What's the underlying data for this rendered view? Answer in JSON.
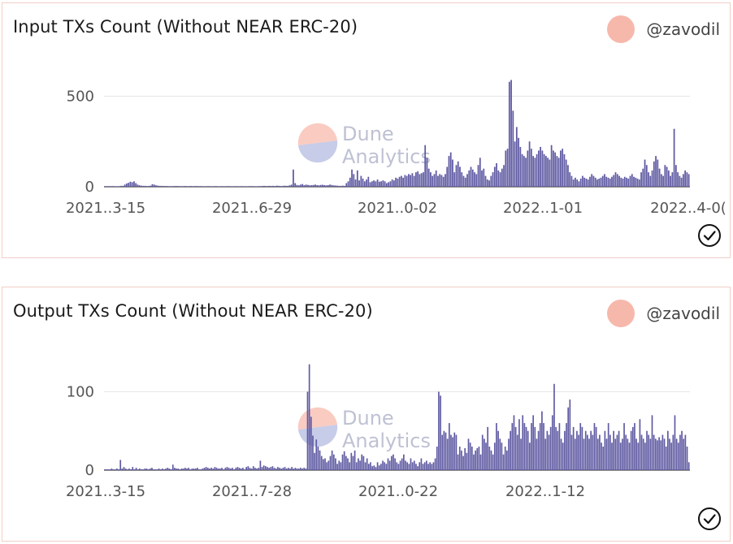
{
  "cards": [
    {
      "title": "Input TXs Count (Without NEAR ERC-20)",
      "author": "@zavodil",
      "watermark": [
        "Dune",
        "Analytics"
      ],
      "chart_data": {
        "type": "bar",
        "title": "Input TXs Count (Without NEAR ERC-20)",
        "xlabel": "",
        "ylabel": "",
        "ylim": [
          0,
          610
        ],
        "yticks": [
          0,
          500
        ],
        "xtick_labels": [
          "2021..3-15",
          "2021..6-29",
          "2021..0-02",
          "2022..1-01",
          "2022..4-0("
        ],
        "color": "#5f5aa2",
        "values": [
          3,
          3,
          3,
          3,
          3,
          3,
          2,
          2,
          3,
          5,
          5,
          12,
          18,
          22,
          28,
          25,
          30,
          20,
          12,
          8,
          6,
          5,
          5,
          4,
          4,
          6,
          14,
          12,
          8,
          6,
          5,
          5,
          4,
          4,
          4,
          3,
          3,
          3,
          4,
          4,
          4,
          3,
          3,
          3,
          4,
          3,
          3,
          4,
          3,
          3,
          4,
          3,
          3,
          3,
          2,
          2,
          3,
          3,
          2,
          2,
          3,
          3,
          2,
          2,
          3,
          2,
          2,
          3,
          3,
          2,
          2,
          2,
          3,
          2,
          2,
          3,
          2,
          2,
          2,
          3,
          3,
          3,
          2,
          2,
          3,
          3,
          4,
          5,
          4,
          4,
          5,
          4,
          5,
          4,
          6,
          5,
          4,
          4,
          6,
          5,
          5,
          8,
          12,
          95,
          20,
          10,
          8,
          12,
          15,
          9,
          12,
          10,
          8,
          9,
          10,
          12,
          9,
          8,
          10,
          11,
          9,
          8,
          9,
          12,
          10,
          8,
          7,
          6,
          5,
          5,
          6,
          5,
          20,
          30,
          50,
          95,
          70,
          40,
          90,
          35,
          60,
          45,
          30,
          40,
          55,
          25,
          30,
          35,
          30,
          40,
          28,
          30,
          35,
          30,
          20,
          25,
          30,
          40,
          35,
          50,
          45,
          55,
          60,
          50,
          65,
          60,
          70,
          65,
          75,
          60,
          80,
          85,
          70,
          75,
          80,
          230,
          160,
          100,
          80,
          60,
          70,
          90,
          60,
          70,
          65,
          55,
          70,
          110,
          170,
          190,
          150,
          80,
          120,
          140,
          110,
          80,
          60,
          50,
          70,
          90,
          110,
          95,
          80,
          70,
          120,
          160,
          90,
          100,
          60,
          40,
          35,
          60,
          80,
          110,
          130,
          90,
          80,
          100,
          120,
          200,
          210,
          580,
          590,
          420,
          250,
          330,
          270,
          220,
          180,
          170,
          160,
          200,
          250,
          210,
          170,
          160,
          180,
          200,
          220,
          200,
          180,
          170,
          160,
          150,
          230,
          200,
          190,
          170,
          160,
          200,
          210,
          180,
          150,
          120,
          80,
          60,
          40,
          50,
          40,
          30,
          45,
          60,
          50,
          45,
          40,
          55,
          70,
          60,
          50,
          40,
          45,
          50,
          60,
          70,
          55,
          50,
          45,
          55,
          65,
          80,
          70,
          60,
          50,
          45,
          55,
          50,
          45,
          60,
          70,
          55,
          50,
          45,
          40,
          80,
          100,
          150,
          120,
          80,
          60,
          90,
          140,
          170,
          150,
          100,
          70,
          60,
          120,
          110,
          90,
          60,
          80,
          320,
          120,
          80,
          60,
          50,
          70,
          90,
          80,
          70
        ]
      }
    },
    {
      "title": "Output TXs Count (Without NEAR ERC-20)",
      "author": "@zavodil",
      "watermark": [
        "Dune",
        "Analytics"
      ],
      "chart_data": {
        "type": "bar",
        "title": "Output TXs Count (Without NEAR ERC-20)",
        "xlabel": "",
        "ylabel": "",
        "ylim": [
          0,
          145
        ],
        "yticks": [
          0,
          100
        ],
        "xtick_labels": [
          "2021..3-15",
          "2021..7-28",
          "2021..0-22",
          "2022..1-12"
        ],
        "color": "#5f5aa2",
        "values": [
          1,
          1,
          1,
          1,
          2,
          1,
          1,
          2,
          1,
          13,
          2,
          4,
          2,
          1,
          2,
          1,
          4,
          1,
          3,
          1,
          2,
          1,
          1,
          2,
          2,
          1,
          2,
          3,
          1,
          1,
          1,
          2,
          1,
          2,
          1,
          2,
          3,
          2,
          1,
          7,
          3,
          2,
          2,
          1,
          2,
          2,
          3,
          2,
          3,
          1,
          2,
          2,
          2,
          3,
          1,
          1,
          2,
          3,
          4,
          3,
          2,
          3,
          2,
          4,
          3,
          2,
          2,
          3,
          1,
          3,
          4,
          3,
          2,
          3,
          1,
          3,
          4,
          3,
          2,
          3,
          1,
          4,
          5,
          3,
          2,
          5,
          3,
          2,
          3,
          12,
          4,
          6,
          5,
          4,
          3,
          4,
          5,
          3,
          2,
          4,
          3,
          2,
          3,
          4,
          2,
          3,
          2,
          4,
          2,
          3,
          2,
          2,
          3,
          2,
          3,
          2,
          100,
          135,
          68,
          44,
          22,
          39,
          30,
          25,
          18,
          14,
          15,
          10,
          12,
          18,
          25,
          20,
          15,
          8,
          12,
          10,
          20,
          24,
          18,
          15,
          10,
          22,
          18,
          25,
          10,
          15,
          12,
          20,
          18,
          10,
          15,
          8,
          10,
          5,
          6,
          4,
          10,
          6,
          8,
          12,
          10,
          8,
          15,
          12,
          18,
          20,
          15,
          10,
          8,
          12,
          15,
          20,
          12,
          10,
          8,
          15,
          10,
          12,
          8,
          5,
          10,
          15,
          8,
          10,
          12,
          8,
          10,
          8,
          10,
          15,
          30,
          100,
          95,
          45,
          50,
          48,
          40,
          60,
          45,
          42,
          48,
          45,
          20,
          30,
          25,
          18,
          28,
          22,
          40,
          35,
          30,
          20,
          25,
          28,
          30,
          20,
          45,
          40,
          35,
          55,
          30,
          25,
          20,
          35,
          60,
          50,
          40,
          35,
          20,
          30,
          25,
          40,
          50,
          60,
          70,
          55,
          45,
          65,
          40,
          70,
          60,
          55,
          50,
          35,
          60,
          70,
          55,
          40,
          50,
          60,
          75,
          60,
          40,
          50,
          45,
          55,
          70,
          110,
          55,
          50,
          60,
          40,
          35,
          50,
          60,
          80,
          90,
          45,
          55,
          40,
          50,
          45,
          60,
          55,
          40,
          50,
          45,
          40,
          50,
          45,
          60,
          55,
          40,
          45,
          35,
          30,
          50,
          40,
          60,
          45,
          35,
          50,
          40,
          45,
          50,
          35,
          40,
          60,
          45,
          40,
          35,
          50,
          55,
          60,
          40,
          35,
          65,
          45,
          40,
          35,
          50,
          45,
          40,
          70,
          45,
          40,
          38,
          42,
          38,
          45,
          40,
          30,
          50,
          40,
          35,
          45,
          70,
          40,
          35,
          45,
          50,
          40,
          45,
          30,
          10
        ]
      }
    }
  ]
}
